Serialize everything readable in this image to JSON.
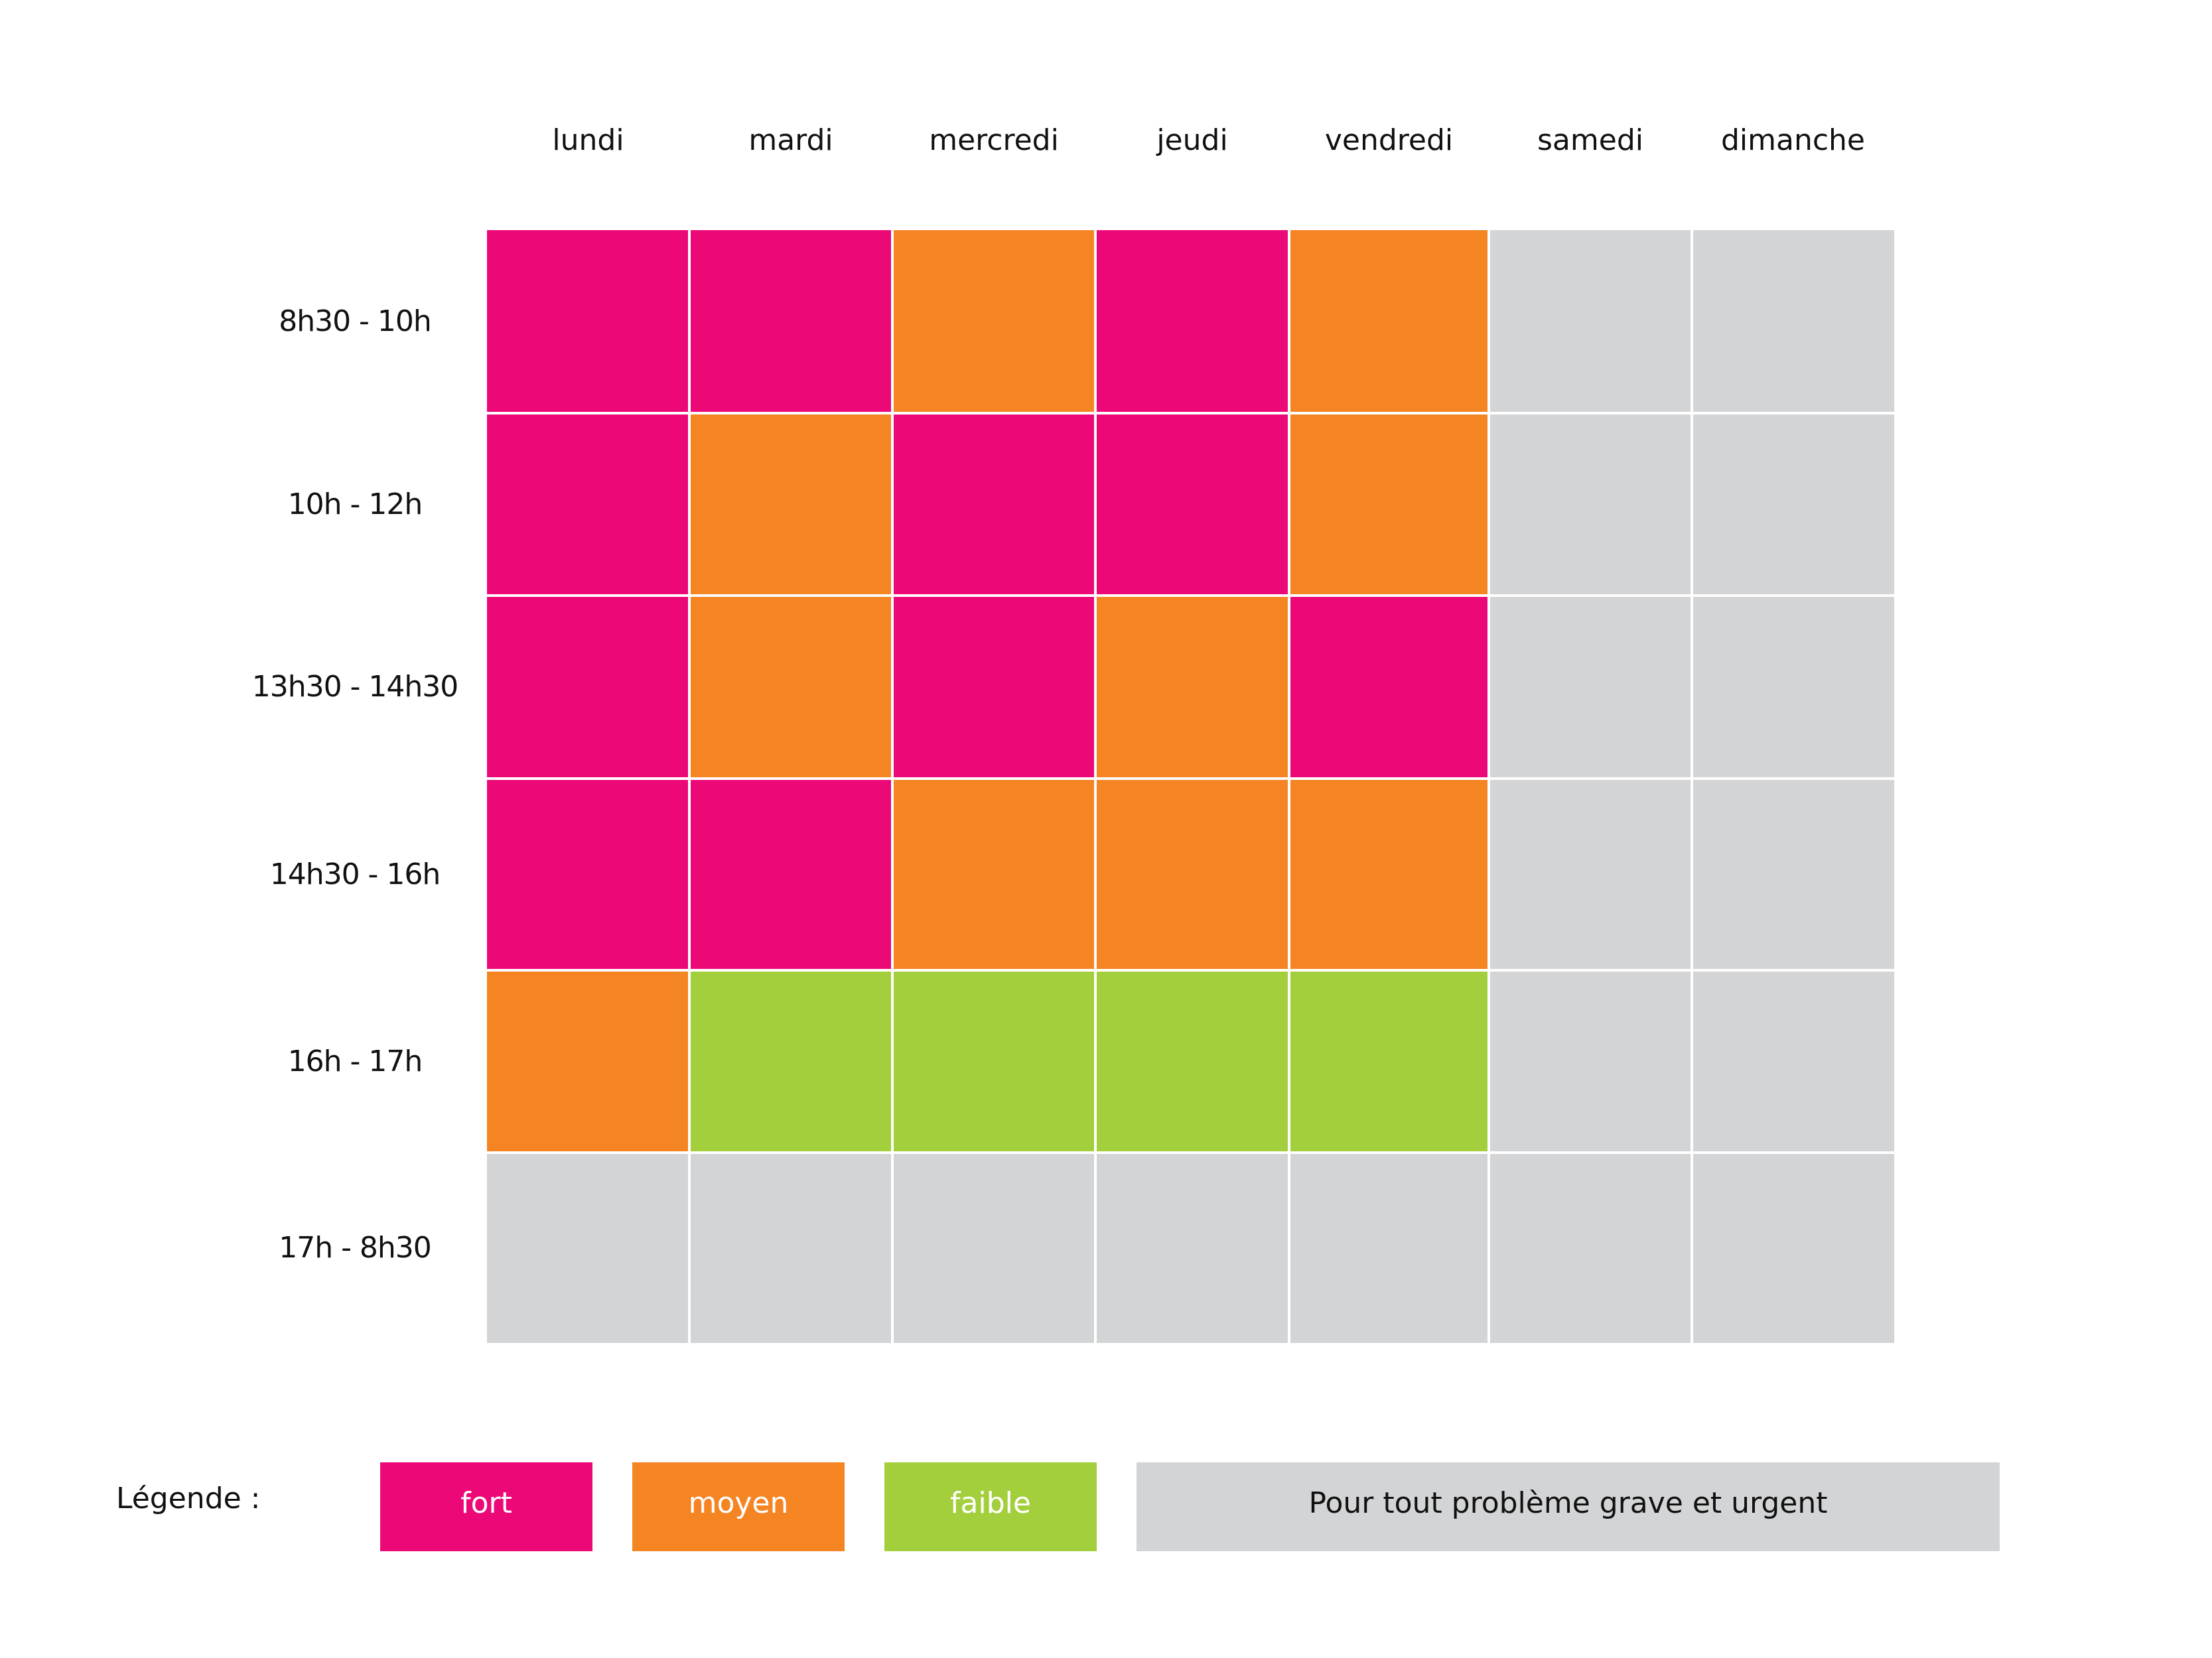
{
  "chart_data": {
    "type": "heatmap",
    "columns": [
      "lundi",
      "mardi",
      "mercredi",
      "jeudi",
      "vendredi",
      "samedi",
      "dimanche"
    ],
    "rows": [
      "8h30 - 10h",
      "10h - 12h",
      "13h30 - 14h30",
      "14h30 - 16h",
      "16h - 17h",
      "17h - 8h30"
    ],
    "values": [
      [
        "fort",
        "fort",
        "moyen",
        "fort",
        "moyen",
        "urgent",
        "urgent"
      ],
      [
        "fort",
        "moyen",
        "fort",
        "fort",
        "moyen",
        "urgent",
        "urgent"
      ],
      [
        "fort",
        "moyen",
        "fort",
        "moyen",
        "fort",
        "urgent",
        "urgent"
      ],
      [
        "fort",
        "fort",
        "moyen",
        "moyen",
        "moyen",
        "urgent",
        "urgent"
      ],
      [
        "moyen",
        "faible",
        "faible",
        "faible",
        "faible",
        "urgent",
        "urgent"
      ],
      [
        "urgent",
        "urgent",
        "urgent",
        "urgent",
        "urgent",
        "urgent",
        "urgent"
      ]
    ],
    "legend": {
      "title": "Légende :",
      "items": [
        {
          "key": "fort",
          "label": "fort",
          "color": "#ED0877",
          "text_color": "#ffffff"
        },
        {
          "key": "moyen",
          "label": "moyen",
          "color": "#F58423",
          "text_color": "#ffffff"
        },
        {
          "key": "faible",
          "label": "faible",
          "color": "#A3CF3C",
          "text_color": "#ffffff"
        },
        {
          "key": "urgent",
          "label": "Pour tout problème grave et urgent",
          "color": "#D3D4D6",
          "text_color": "#111111"
        }
      ],
      "placement": "bottom"
    }
  }
}
